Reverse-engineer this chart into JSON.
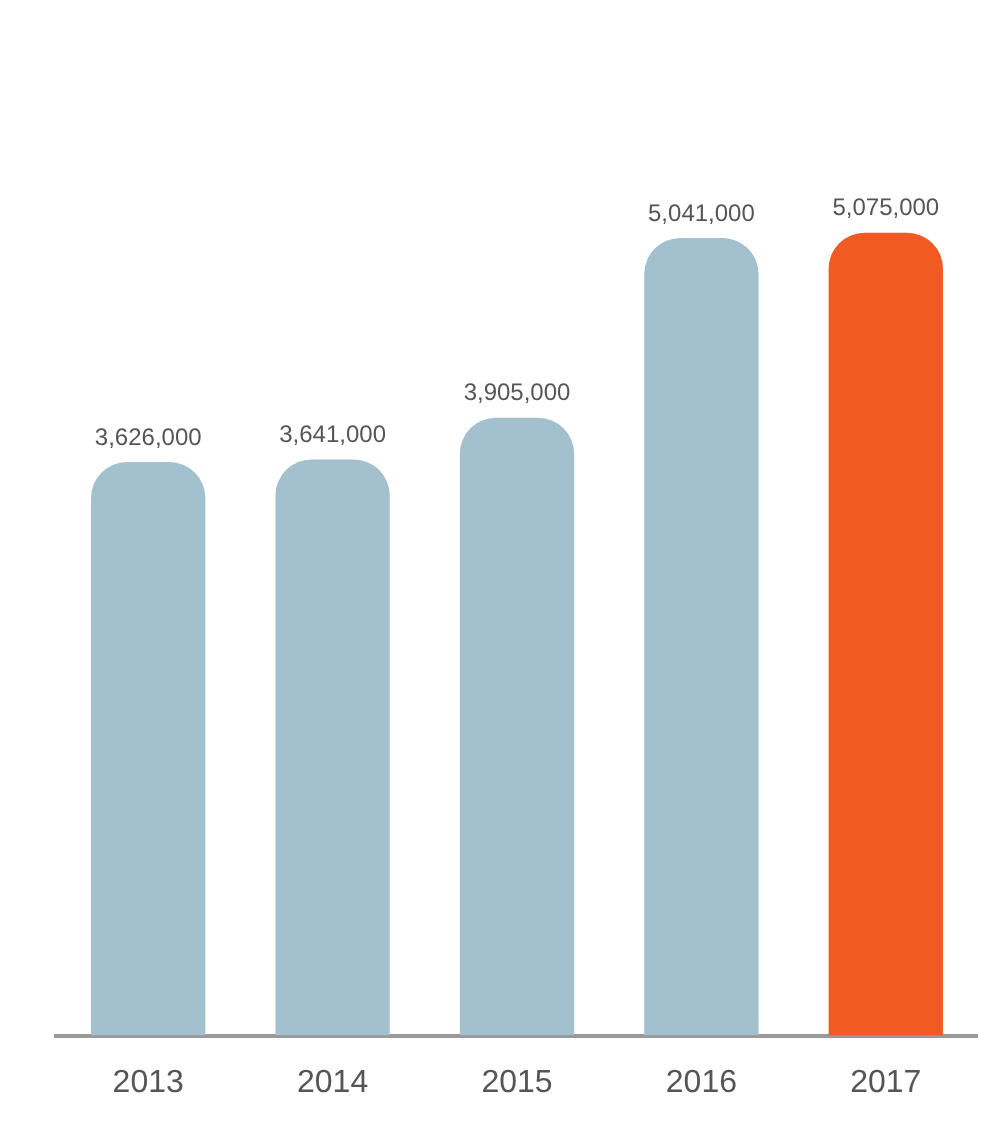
{
  "chart_data": {
    "type": "bar",
    "categories": [
      "2013",
      "2014",
      "2015",
      "2016",
      "2017"
    ],
    "values": [
      3626000,
      3641000,
      3905000,
      5041000,
      5075000
    ],
    "colors": [
      "#a3c0cf",
      "#a3c0cf",
      "#a3c0cf",
      "#a3c0cf",
      "#f15a22"
    ],
    "value_labels": [
      "3,626,000",
      "3,641,000",
      "3,905,000",
      "5,041,000",
      "5,075,000"
    ],
    "grid": false,
    "legend": false
  }
}
